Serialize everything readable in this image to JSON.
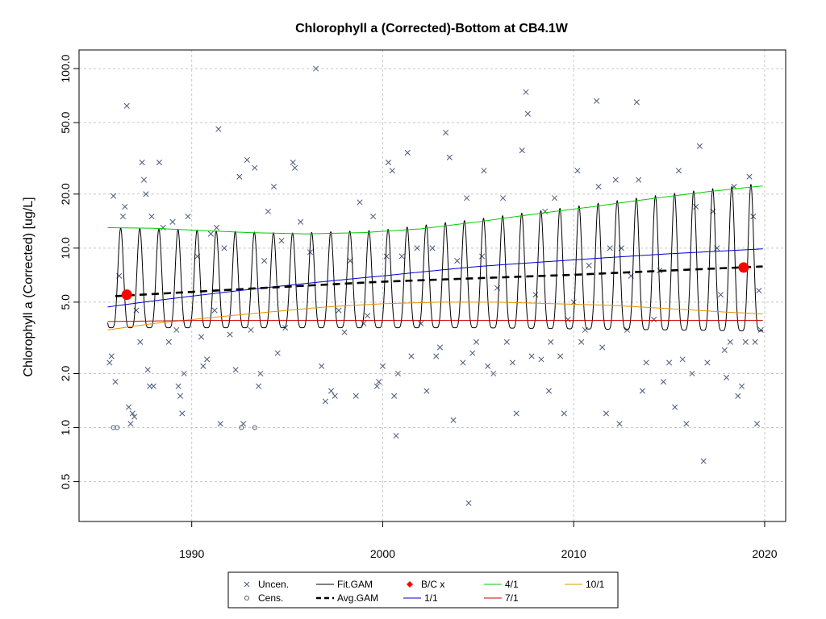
{
  "chart_data": {
    "type": "scatter",
    "title": "Chlorophyll a (Corrected)-Bottom at CB4.1W",
    "xlabel": "",
    "ylabel": "Chlorophyll a (Corrected) [ug/L]",
    "y_scale": "log",
    "xlim": [
      1984.1,
      2021.1
    ],
    "ylim": [
      0.3,
      127
    ],
    "grid": true,
    "x_ticks": [
      "1990",
      "2000",
      "2010",
      "2020"
    ],
    "y_ticks": [
      "0.5",
      "1.0",
      "2.0",
      "5.0",
      "10.0",
      "20.0",
      "50.0",
      "100.0"
    ],
    "legend_position": "bottom",
    "legend": [
      {
        "label": "Uncen.",
        "color": "#4a5a7a",
        "marker": "x"
      },
      {
        "label": "Cens.",
        "color": "#4a5a7a",
        "marker": "circle-open"
      },
      {
        "label": "Fit.GAM",
        "color": "#000000",
        "marker": "line"
      },
      {
        "label": "Avg.GAM",
        "color": "#000000",
        "marker": "dashed-line"
      },
      {
        "label": "B/C x",
        "color": "#ff0000",
        "marker": "diamond"
      },
      {
        "label": "1/1",
        "color": "#0000cc",
        "marker": "line"
      },
      {
        "label": "4/1",
        "color": "#00cc00",
        "marker": "line"
      },
      {
        "label": "7/1",
        "color": "#cc0000",
        "marker": "line"
      },
      {
        "label": "10/1",
        "color": "#e69500",
        "marker": "line"
      }
    ],
    "series": [
      {
        "name": "Uncen.",
        "type": "scatter",
        "color": "#4a5a7a",
        "points": [
          [
            1985.7,
            2.3
          ],
          [
            1985.8,
            2.5
          ],
          [
            1985.9,
            19.5
          ],
          [
            1986.0,
            1.8
          ],
          [
            1986.2,
            7.0
          ],
          [
            1986.4,
            15.0
          ],
          [
            1986.5,
            17.0
          ],
          [
            1986.6,
            62.0
          ],
          [
            1986.7,
            1.3
          ],
          [
            1986.8,
            1.05
          ],
          [
            1986.9,
            1.2
          ],
          [
            1987.0,
            1.15
          ],
          [
            1987.1,
            4.5
          ],
          [
            1987.3,
            3.0
          ],
          [
            1987.4,
            30.0
          ],
          [
            1987.5,
            24.0
          ],
          [
            1987.6,
            20.0
          ],
          [
            1987.7,
            2.1
          ],
          [
            1987.8,
            1.7
          ],
          [
            1987.9,
            15.0
          ],
          [
            1988.0,
            1.7
          ],
          [
            1988.3,
            30.0
          ],
          [
            1988.5,
            13.0
          ],
          [
            1988.8,
            3.0
          ],
          [
            1989.0,
            14.0
          ],
          [
            1989.2,
            3.5
          ],
          [
            1989.3,
            1.7
          ],
          [
            1989.4,
            1.5
          ],
          [
            1989.5,
            1.2
          ],
          [
            1989.6,
            2.0
          ],
          [
            1989.8,
            15.0
          ],
          [
            1990.3,
            9.0
          ],
          [
            1990.5,
            3.2
          ],
          [
            1990.6,
            2.2
          ],
          [
            1990.8,
            2.4
          ],
          [
            1991.0,
            12.0
          ],
          [
            1991.2,
            4.5
          ],
          [
            1991.3,
            13.0
          ],
          [
            1991.4,
            46.0
          ],
          [
            1991.5,
            1.05
          ],
          [
            1991.7,
            10.0
          ],
          [
            1992.0,
            3.3
          ],
          [
            1992.3,
            2.1
          ],
          [
            1992.5,
            25.0
          ],
          [
            1992.7,
            1.05
          ],
          [
            1992.9,
            31.0
          ],
          [
            1993.1,
            3.5
          ],
          [
            1993.3,
            28.0
          ],
          [
            1993.5,
            1.7
          ],
          [
            1993.6,
            2.0
          ],
          [
            1993.8,
            8.5
          ],
          [
            1994.0,
            16.0
          ],
          [
            1994.3,
            22.0
          ],
          [
            1994.5,
            2.6
          ],
          [
            1994.7,
            11.0
          ],
          [
            1994.9,
            3.6
          ],
          [
            1995.3,
            30.0
          ],
          [
            1995.4,
            28.0
          ],
          [
            1995.7,
            14.0
          ],
          [
            1996.2,
            9.5
          ],
          [
            1996.5,
            100.0
          ],
          [
            1996.8,
            2.2
          ],
          [
            1997.0,
            1.4
          ],
          [
            1997.3,
            1.6
          ],
          [
            1997.5,
            1.5
          ],
          [
            1997.7,
            4.5
          ],
          [
            1998.0,
            3.4
          ],
          [
            1998.3,
            8.5
          ],
          [
            1998.6,
            1.5
          ],
          [
            1998.8,
            18.0
          ],
          [
            1999.0,
            3.8
          ],
          [
            1999.2,
            4.2
          ],
          [
            1999.5,
            15.0
          ],
          [
            1999.7,
            1.7
          ],
          [
            1999.8,
            1.8
          ],
          [
            2000.0,
            2.2
          ],
          [
            2000.2,
            9.0
          ],
          [
            2000.3,
            30.0
          ],
          [
            2000.5,
            27.0
          ],
          [
            2000.6,
            1.5
          ],
          [
            2000.7,
            0.9
          ],
          [
            2000.8,
            2.0
          ],
          [
            2001.0,
            9.0
          ],
          [
            2001.3,
            34.0
          ],
          [
            2001.5,
            2.5
          ],
          [
            2001.8,
            10.0
          ],
          [
            2002.0,
            3.8
          ],
          [
            2002.3,
            1.6
          ],
          [
            2002.6,
            10.0
          ],
          [
            2002.8,
            2.5
          ],
          [
            2003.0,
            2.8
          ],
          [
            2003.3,
            44.0
          ],
          [
            2003.5,
            32.0
          ],
          [
            2003.7,
            1.1
          ],
          [
            2003.9,
            8.5
          ],
          [
            2004.2,
            2.3
          ],
          [
            2004.4,
            19.0
          ],
          [
            2004.5,
            0.38
          ],
          [
            2004.7,
            2.6
          ],
          [
            2004.9,
            3.0
          ],
          [
            2005.2,
            9.0
          ],
          [
            2005.3,
            27.0
          ],
          [
            2005.5,
            2.2
          ],
          [
            2005.8,
            2.0
          ],
          [
            2006.0,
            6.0
          ],
          [
            2006.3,
            19.0
          ],
          [
            2006.5,
            3.0
          ],
          [
            2006.8,
            2.3
          ],
          [
            2007.0,
            1.2
          ],
          [
            2007.3,
            35.0
          ],
          [
            2007.5,
            74.0
          ],
          [
            2007.6,
            56.0
          ],
          [
            2007.8,
            2.5
          ],
          [
            2008.0,
            5.5
          ],
          [
            2008.3,
            2.4
          ],
          [
            2008.5,
            16.0
          ],
          [
            2008.7,
            1.6
          ],
          [
            2008.8,
            3.0
          ],
          [
            2009.0,
            19.0
          ],
          [
            2009.3,
            2.5
          ],
          [
            2009.5,
            1.2
          ],
          [
            2009.7,
            4.0
          ],
          [
            2010.0,
            5.0
          ],
          [
            2010.2,
            27.0
          ],
          [
            2010.4,
            3.0
          ],
          [
            2010.6,
            3.5
          ],
          [
            2010.8,
            8.0
          ],
          [
            2011.2,
            66.0
          ],
          [
            2011.3,
            22.0
          ],
          [
            2011.5,
            2.8
          ],
          [
            2011.7,
            1.2
          ],
          [
            2011.9,
            10.0
          ],
          [
            2012.2,
            24.0
          ],
          [
            2012.4,
            1.05
          ],
          [
            2012.5,
            10.0
          ],
          [
            2012.8,
            3.5
          ],
          [
            2013.0,
            7.0
          ],
          [
            2013.3,
            65.0
          ],
          [
            2013.4,
            24.0
          ],
          [
            2013.6,
            1.6
          ],
          [
            2013.8,
            2.3
          ],
          [
            2014.2,
            4.0
          ],
          [
            2014.5,
            7.5
          ],
          [
            2014.7,
            1.8
          ],
          [
            2015.0,
            2.3
          ],
          [
            2015.3,
            1.3
          ],
          [
            2015.5,
            27.0
          ],
          [
            2015.7,
            2.4
          ],
          [
            2015.9,
            1.05
          ],
          [
            2016.2,
            2.0
          ],
          [
            2016.4,
            17.0
          ],
          [
            2016.6,
            37.0
          ],
          [
            2016.8,
            0.65
          ],
          [
            2017.0,
            2.3
          ],
          [
            2017.3,
            16.0
          ],
          [
            2017.5,
            10.0
          ],
          [
            2017.7,
            5.5
          ],
          [
            2017.9,
            2.7
          ],
          [
            2018.0,
            1.9
          ],
          [
            2018.2,
            3.0
          ],
          [
            2018.4,
            22.0
          ],
          [
            2018.6,
            1.5
          ],
          [
            2018.8,
            1.7
          ],
          [
            2019.0,
            3.0
          ],
          [
            2019.2,
            25.0
          ],
          [
            2019.4,
            15.0
          ],
          [
            2019.5,
            3.0
          ],
          [
            2019.6,
            1.05
          ],
          [
            2019.7,
            5.8
          ],
          [
            2019.8,
            3.5
          ]
        ]
      },
      {
        "name": "Cens.",
        "type": "scatter",
        "color": "#4a5a7a",
        "points": [
          [
            1985.9,
            1.0
          ],
          [
            1986.1,
            1.0
          ],
          [
            1992.6,
            1.0
          ],
          [
            1993.3,
            1.0
          ]
        ]
      },
      {
        "name": "1/1",
        "type": "line",
        "color": "#0000cc",
        "x": [
          1985.6,
          1990,
          1995,
          2000,
          2005,
          2010,
          2015,
          2019.9
        ],
        "y": [
          4.7,
          5.4,
          6.2,
          7.0,
          7.9,
          8.6,
          9.3,
          9.9
        ]
      },
      {
        "name": "4/1",
        "type": "line",
        "color": "#00cc00",
        "x": [
          1985.6,
          1988,
          1990,
          1993,
          1996,
          1999,
          2002,
          2005,
          2008,
          2011,
          2014,
          2017,
          2019.9
        ],
        "y": [
          13.0,
          12.9,
          12.6,
          12.2,
          12.0,
          12.2,
          12.8,
          14.0,
          15.5,
          17.0,
          18.8,
          20.6,
          22.2
        ]
      },
      {
        "name": "7/1",
        "type": "line",
        "color": "#cc0000",
        "x": [
          1985.6,
          1990,
          1995,
          2000,
          2005,
          2010,
          2015,
          2019.9
        ],
        "y": [
          3.9,
          3.95,
          3.95,
          3.95,
          3.95,
          3.95,
          3.95,
          3.95
        ]
      },
      {
        "name": "10/1",
        "type": "line",
        "color": "#e69500",
        "x": [
          1985.6,
          1988,
          1991,
          1994,
          1997,
          2000,
          2003,
          2006,
          2009,
          2012,
          2015,
          2018,
          2019.9
        ],
        "y": [
          3.5,
          3.8,
          4.1,
          4.4,
          4.7,
          4.9,
          5.0,
          5.0,
          4.9,
          4.8,
          4.6,
          4.4,
          4.3
        ]
      },
      {
        "name": "Avg.GAM",
        "type": "dashed-line",
        "color": "#000000",
        "x": [
          1986.0,
          1990,
          1995,
          2000,
          2005,
          2010,
          2015,
          2019.9
        ],
        "y": [
          5.4,
          5.7,
          6.1,
          6.5,
          6.8,
          7.1,
          7.5,
          7.9
        ]
      },
      {
        "name": "Fit.GAM",
        "type": "seasonal-line",
        "color": "#000000",
        "x": [
          1985.6,
          1990,
          1995,
          2000,
          2005,
          2010,
          2015,
          2019.9
        ],
        "peak": [
          13.0,
          12.6,
          12.1,
          12.6,
          14.5,
          17.0,
          20.0,
          23.0
        ],
        "trough": [
          3.6,
          3.6,
          3.6,
          3.6,
          3.6,
          3.55,
          3.5,
          3.45
        ]
      },
      {
        "name": "B/C x",
        "type": "scatter",
        "color": "#ff0000",
        "points": [
          [
            1986.6,
            5.5
          ],
          [
            2018.9,
            7.8
          ]
        ]
      }
    ]
  }
}
